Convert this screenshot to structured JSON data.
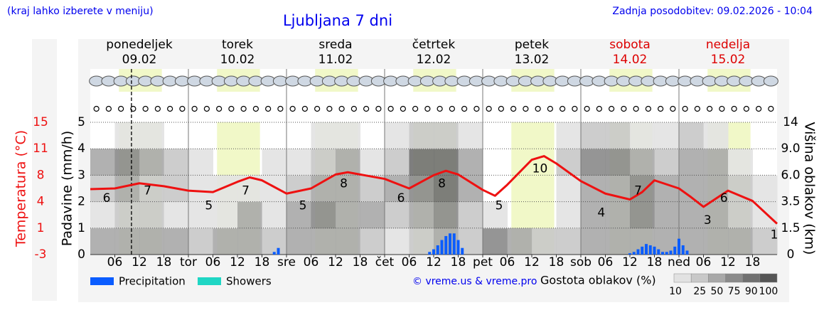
{
  "chart_data": {
    "type": "meteogram",
    "note": "(kraj lahko izberete v meniju)",
    "title": "Ljubljana 7 dni",
    "updated": "Zadnja posodobitev: 09.02.2026 - 10:04",
    "days": [
      {
        "name": "ponedeljek",
        "date": "09.02",
        "color": "#000000"
      },
      {
        "name": "torek",
        "date": "10.02",
        "color": "#000000"
      },
      {
        "name": "sreda",
        "date": "11.02",
        "color": "#000000"
      },
      {
        "name": "četrtek",
        "date": "12.02",
        "color": "#000000"
      },
      {
        "name": "petek",
        "date": "13.02",
        "color": "#000000"
      },
      {
        "name": "sobota",
        "date": "14.02",
        "color": "#dd0000"
      },
      {
        "name": "nedelja",
        "date": "15.02",
        "color": "#dd0000"
      }
    ],
    "xlim": [
      0,
      168
    ],
    "xticks": [
      {
        "value": 6,
        "label": "06"
      },
      12,
      18,
      {
        "value": 24,
        "label": "tor"
      },
      {
        "value": 30,
        "label": "06"
      },
      {
        "value": 36,
        "label": "12"
      },
      {
        "value": 42,
        "label": "18"
      },
      {
        "value": 48,
        "label": "sre"
      },
      {
        "value": 54,
        "label": "06"
      },
      {
        "value": 60,
        "label": "12"
      },
      {
        "value": 66,
        "label": "18"
      },
      {
        "value": 72,
        "label": "čet"
      },
      {
        "value": 78,
        "label": "06"
      },
      {
        "value": 84,
        "label": "12"
      },
      {
        "value": 90,
        "label": "18"
      },
      {
        "value": 96,
        "label": "pet"
      },
      {
        "value": 102,
        "label": "06"
      },
      {
        "value": 108,
        "label": "12"
      },
      {
        "value": 114,
        "label": "18"
      },
      {
        "value": 120,
        "label": "sob"
      },
      {
        "value": 126,
        "label": "06"
      },
      {
        "value": 132,
        "label": "12"
      },
      {
        "value": 138,
        "label": "18"
      },
      {
        "value": 144,
        "label": "ned"
      },
      {
        "value": 150,
        "label": "06"
      },
      {
        "value": 156,
        "label": "12"
      },
      {
        "value": 162,
        "label": "18"
      }
    ],
    "now": 10.07,
    "ylabel": "Padavine (mm/h)",
    "ylim": [
      0,
      5
    ],
    "yticks": [
      0,
      1,
      2,
      3,
      4,
      5
    ],
    "temp_label": "Temperatura (°C)",
    "temp_lim": [
      -3,
      15
    ],
    "temp_ticks": [
      15,
      {
        "value": 11.4,
        "label": "11"
      },
      {
        "value": 7.8,
        "label": "8"
      },
      {
        "value": 4.2,
        "label": "4"
      },
      {
        "value": 0.6,
        "label": "1"
      },
      -3
    ],
    "y2label": "Višina oblakov (km)",
    "y2ticks": [
      0,
      1.5,
      3.5,
      {
        "value": 6,
        "label": "6.0"
      },
      {
        "value": 9,
        "label": "9.0"
      },
      14
    ],
    "grid": true,
    "temperature": {
      "color": "#ee1111",
      "x": [
        0,
        6,
        12,
        18,
        24,
        30,
        36,
        39,
        42,
        48,
        54,
        60,
        63,
        66,
        72,
        78,
        84,
        87,
        90,
        96,
        99,
        102,
        108,
        111,
        114,
        120,
        126,
        132,
        135,
        138,
        144,
        147,
        150,
        156,
        162,
        168
      ],
      "values": [
        5.9,
        6.0,
        6.7,
        6.3,
        5.7,
        5.5,
        6.9,
        7.5,
        7.1,
        5.3,
        6.0,
        7.9,
        8.2,
        7.9,
        7.3,
        6.0,
        7.8,
        8.4,
        7.9,
        5.8,
        5.0,
        6.5,
        9.9,
        10.4,
        9.4,
        7.0,
        5.3,
        4.5,
        5.5,
        7.1,
        6.0,
        4.8,
        3.5,
        5.7,
        4.3,
        1.2
      ]
    },
    "temperature_labels": {
      "x": [
        4,
        14,
        29,
        38,
        52,
        62,
        76,
        86,
        100,
        110,
        125,
        134,
        151,
        155,
        168
      ],
      "values": [
        6,
        7,
        5,
        7,
        5,
        8,
        6,
        8,
        5,
        10,
        4,
        7,
        3,
        6,
        1
      ]
    },
    "precipitation": {
      "name": "Precipitation",
      "color": "#0a5cff",
      "x": [
        45,
        46,
        83,
        84,
        85,
        86,
        87,
        88,
        89,
        90,
        91,
        132,
        133,
        134,
        135,
        136,
        137,
        138,
        139,
        140,
        141,
        142,
        143,
        144,
        145,
        146
      ],
      "values": [
        0.1,
        0.25,
        0.1,
        0.2,
        0.35,
        0.55,
        0.7,
        0.8,
        0.8,
        0.55,
        0.25,
        0.05,
        0.1,
        0.2,
        0.3,
        0.4,
        0.35,
        0.3,
        0.2,
        0.1,
        0.1,
        0.15,
        0.3,
        0.6,
        0.35,
        0.15
      ]
    },
    "showers": {
      "name": "Showers",
      "color": "#1fd6c4"
    },
    "credit": "© vreme.us & vreme.pro",
    "cloud_density": {
      "name": "Gostota oblakov (%)",
      "scale": [
        10,
        25,
        50,
        75,
        90,
        100
      ],
      "colors": [
        "#e2e2e2",
        "#c8c8c8",
        "#a8a8a8",
        "#8a8a8a",
        "#707070",
        "#555555"
      ],
      "x": [
        0,
        6,
        12,
        18,
        24,
        30,
        36,
        42,
        48,
        54,
        60,
        66,
        72,
        78,
        84,
        90,
        96,
        102,
        108,
        114,
        120,
        126,
        132,
        138,
        144,
        150,
        156,
        162
      ],
      "values": [
        [
          60,
          20,
          30,
          70,
          0
        ],
        [
          70,
          40,
          50,
          80,
          20
        ],
        [
          60,
          30,
          40,
          70,
          20
        ],
        [
          50,
          20,
          30,
          40,
          0
        ],
        [
          40,
          10,
          10,
          10,
          0
        ],
        [
          50,
          20,
          10,
          0,
          0
        ],
        [
          60,
          50,
          10,
          0,
          0
        ],
        [
          30,
          20,
          10,
          10,
          0
        ],
        [
          60,
          60,
          40,
          10,
          0
        ],
        [
          60,
          80,
          70,
          40,
          10
        ],
        [
          50,
          70,
          70,
          50,
          10
        ],
        [
          40,
          50,
          40,
          20,
          0
        ],
        [
          20,
          40,
          50,
          40,
          10
        ],
        [
          40,
          60,
          80,
          90,
          40
        ],
        [
          50,
          80,
          90,
          90,
          40
        ],
        [
          30,
          40,
          60,
          60,
          20
        ],
        [
          80,
          10,
          0,
          0,
          0
        ],
        [
          70,
          0,
          0,
          0,
          0
        ],
        [
          40,
          0,
          0,
          0,
          0
        ],
        [
          40,
          10,
          10,
          30,
          10
        ],
        [
          60,
          50,
          60,
          80,
          40
        ],
        [
          70,
          70,
          70,
          80,
          40
        ],
        [
          70,
          80,
          80,
          70,
          20
        ],
        [
          60,
          60,
          60,
          40,
          10
        ],
        [
          70,
          60,
          70,
          70,
          30
        ],
        [
          60,
          70,
          70,
          50,
          10
        ],
        [
          50,
          40,
          40,
          10,
          0
        ],
        [
          40,
          20,
          10,
          0,
          0
        ]
      ]
    }
  }
}
